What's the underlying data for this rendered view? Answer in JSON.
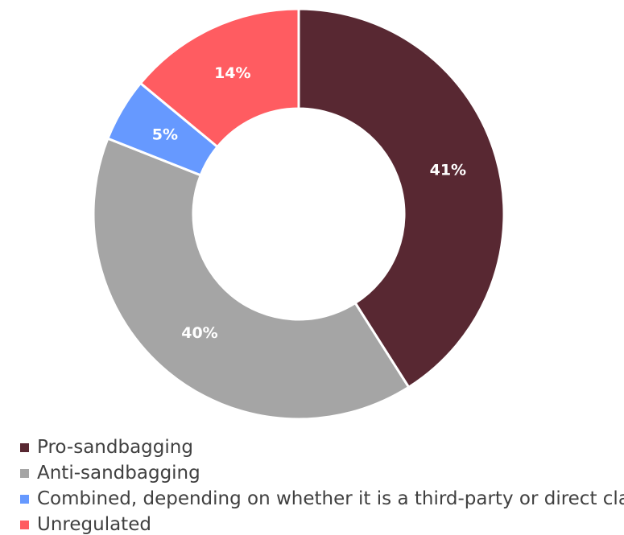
{
  "chart_data": {
    "type": "pie",
    "variant": "donut",
    "categories": [
      "Pro-sandbagging",
      "Anti-sandbagging",
      "Combined, depending on whether it is a third-party or direct claim",
      "Unregulated"
    ],
    "values": [
      41,
      40,
      5,
      14
    ],
    "value_labels": [
      "41%",
      "40%",
      "5%",
      "14%"
    ],
    "colors": [
      "#582832",
      "#A5A5A5",
      "#6699FF",
      "#FF5C61"
    ],
    "title": "",
    "legend_position": "bottom-left"
  }
}
